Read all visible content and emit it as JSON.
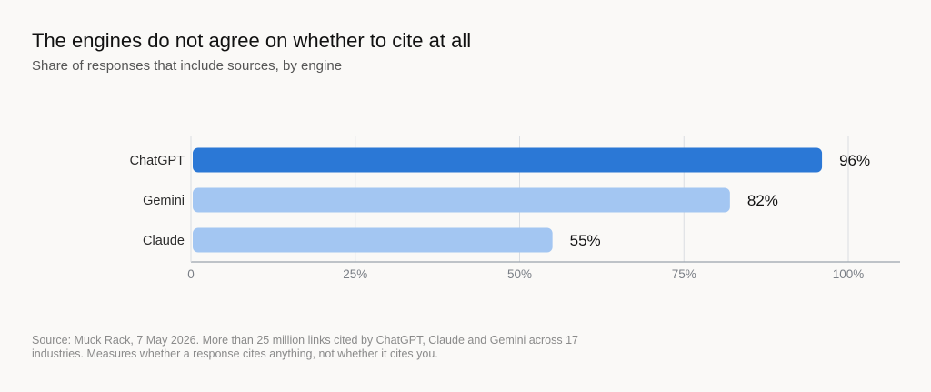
{
  "title": "The engines do not agree on whether to cite at all",
  "subtitle": "Share of responses that include sources, by engine",
  "source": "Source: Muck Rack, 7 May 2026. More than 25 million links cited by ChatGPT, Claude and Gemini across 17 industries. Measures whether a response cites anything, not whether it cites you.",
  "chart_data": {
    "type": "bar",
    "orientation": "horizontal",
    "categories": [
      "ChatGPT",
      "Gemini",
      "Claude"
    ],
    "values": [
      96,
      82,
      55
    ],
    "value_labels": [
      "96%",
      "82%",
      "55%"
    ],
    "xlim": [
      0,
      100
    ],
    "xticks": [
      0,
      25,
      50,
      75,
      100
    ],
    "xtick_labels": [
      "0",
      "25%",
      "50%",
      "75%",
      "100%"
    ],
    "grid": true,
    "colors": {
      "highlight": "#2b78d6",
      "bar": "#a3c6f2",
      "grid": "#d9dde2",
      "axis": "#9aa3ad"
    }
  }
}
